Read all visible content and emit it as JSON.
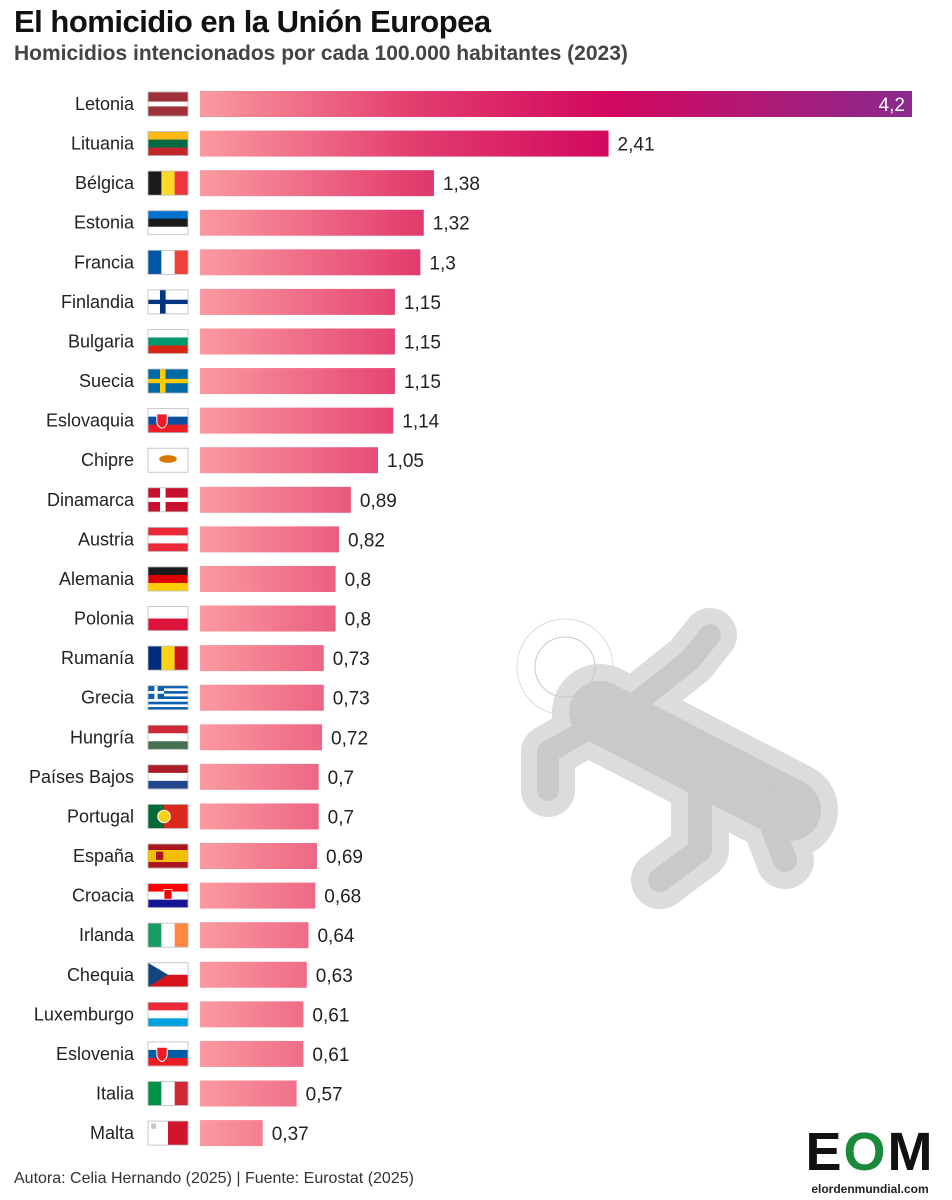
{
  "title": "El homicidio en la Unión Europea",
  "subtitle": "Homicidios intencionados por cada 100.000 habitantes (2023)",
  "footer": "Autora: Celia Hernando (2025) | Fuente: Eurostat (2025)",
  "logo": {
    "letter_e": "E",
    "letter_o": "O",
    "letter_m": "M",
    "url": "elordenmundial.com",
    "brand_color": "#1b8a3a"
  },
  "colors": {
    "bar_start": "#fb9aa0",
    "bar_mid": "#e23d6e",
    "bar_end": "#d2075e",
    "bar_top_end": "#8b2a8e",
    "illustration_fill": "#c9c9c9",
    "illustration_outline": "#dcdcdc"
  },
  "illustration": {
    "icon": "crime-scene-body-outline-icon"
  },
  "chart_data": {
    "type": "bar",
    "orientation": "horizontal",
    "title": "El homicidio en la Unión Europea",
    "subtitle": "Homicidios intencionados por cada 100.000 habitantes (2023)",
    "xlabel": "",
    "ylabel": "",
    "xlim": [
      0,
      4.2
    ],
    "grid": false,
    "categories": [
      "Letonia",
      "Lituania",
      "Bélgica",
      "Estonia",
      "Francia",
      "Finlandia",
      "Bulgaria",
      "Suecia",
      "Eslovaquia",
      "Chipre",
      "Dinamarca",
      "Austria",
      "Alemania",
      "Polonia",
      "Rumanía",
      "Grecia",
      "Hungría",
      "Países Bajos",
      "Portugal",
      "España",
      "Croacia",
      "Irlanda",
      "Chequia",
      "Luxemburgo",
      "Eslovenia",
      "Italia",
      "Malta"
    ],
    "values": [
      4.2,
      2.41,
      1.38,
      1.32,
      1.3,
      1.15,
      1.15,
      1.15,
      1.14,
      1.05,
      0.89,
      0.82,
      0.8,
      0.8,
      0.73,
      0.73,
      0.72,
      0.7,
      0.7,
      0.69,
      0.68,
      0.64,
      0.63,
      0.61,
      0.61,
      0.57,
      0.37
    ],
    "value_labels": [
      "4,2",
      "2,41",
      "1,38",
      "1,32",
      "1,3",
      "1,15",
      "1,15",
      "1,15",
      "1,14",
      "1,05",
      "0,89",
      "0,82",
      "0,8",
      "0,8",
      "0,73",
      "0,73",
      "0,72",
      "0,7",
      "0,7",
      "0,69",
      "0,68",
      "0,64",
      "0,63",
      "0,61",
      "0,61",
      "0,57",
      "0,37"
    ],
    "flags": [
      {
        "icon": "latvia-flag-icon",
        "type": "h",
        "colors": [
          "#9e3039",
          "#ffffff",
          "#9e3039"
        ],
        "weights": [
          2,
          1,
          2
        ]
      },
      {
        "icon": "lithuania-flag-icon",
        "type": "h",
        "colors": [
          "#fdb913",
          "#006a44",
          "#c1272d"
        ]
      },
      {
        "icon": "belgium-flag-icon",
        "type": "v",
        "colors": [
          "#1a1a1a",
          "#fdda24",
          "#ef3340"
        ]
      },
      {
        "icon": "estonia-flag-icon",
        "type": "h",
        "colors": [
          "#0072ce",
          "#1a1a1a",
          "#ffffff"
        ]
      },
      {
        "icon": "france-flag-icon",
        "type": "v",
        "colors": [
          "#0055a4",
          "#ffffff",
          "#ef4135"
        ]
      },
      {
        "icon": "finland-flag-icon",
        "type": "nordic",
        "colors": [
          "#ffffff",
          "#003580"
        ]
      },
      {
        "icon": "bulgaria-flag-icon",
        "type": "h",
        "colors": [
          "#ffffff",
          "#00966e",
          "#d62612"
        ]
      },
      {
        "icon": "sweden-flag-icon",
        "type": "nordic",
        "colors": [
          "#006aa7",
          "#fecc00"
        ]
      },
      {
        "icon": "slovakia-flag-icon",
        "type": "h",
        "colors": [
          "#ffffff",
          "#0b4ea2",
          "#ee1c25"
        ],
        "emblem": "shield"
      },
      {
        "icon": "cyprus-flag-icon",
        "type": "cyprus",
        "colors": [
          "#ffffff",
          "#d57800"
        ]
      },
      {
        "icon": "denmark-flag-icon",
        "type": "nordic",
        "colors": [
          "#c8102e",
          "#ffffff"
        ]
      },
      {
        "icon": "austria-flag-icon",
        "type": "h",
        "colors": [
          "#ed2939",
          "#ffffff",
          "#ed2939"
        ]
      },
      {
        "icon": "germany-flag-icon",
        "type": "h",
        "colors": [
          "#1a1a1a",
          "#dd0000",
          "#ffce00"
        ]
      },
      {
        "icon": "poland-flag-icon",
        "type": "h",
        "colors": [
          "#ffffff",
          "#dc143c"
        ]
      },
      {
        "icon": "romania-flag-icon",
        "type": "v",
        "colors": [
          "#002b7f",
          "#fcd116",
          "#ce1126"
        ]
      },
      {
        "icon": "greece-flag-icon",
        "type": "greece",
        "colors": [
          "#0d5eaf",
          "#ffffff"
        ]
      },
      {
        "icon": "hungary-flag-icon",
        "type": "h",
        "colors": [
          "#ce2939",
          "#ffffff",
          "#477050"
        ]
      },
      {
        "icon": "netherlands-flag-icon",
        "type": "h",
        "colors": [
          "#ae1c28",
          "#ffffff",
          "#21468b"
        ]
      },
      {
        "icon": "portugal-flag-icon",
        "type": "v",
        "colors": [
          "#046a38",
          "#da291c"
        ],
        "weights": [
          2,
          3
        ],
        "emblem": "circle"
      },
      {
        "icon": "spain-flag-icon",
        "type": "h",
        "colors": [
          "#aa151b",
          "#f1bf00",
          "#aa151b"
        ],
        "weights": [
          1,
          2,
          1
        ],
        "emblem": "spain"
      },
      {
        "icon": "croatia-flag-icon",
        "type": "h",
        "colors": [
          "#ff0000",
          "#ffffff",
          "#171796"
        ],
        "emblem": "checker"
      },
      {
        "icon": "ireland-flag-icon",
        "type": "v",
        "colors": [
          "#169b62",
          "#ffffff",
          "#ff883e"
        ]
      },
      {
        "icon": "czechia-flag-icon",
        "type": "czech",
        "colors": [
          "#ffffff",
          "#d7141a",
          "#11457e"
        ]
      },
      {
        "icon": "luxembourg-flag-icon",
        "type": "h",
        "colors": [
          "#ed2939",
          "#ffffff",
          "#00a1de"
        ]
      },
      {
        "icon": "slovenia-flag-icon",
        "type": "h",
        "colors": [
          "#ffffff",
          "#005da4",
          "#ed1c24"
        ],
        "emblem": "shield"
      },
      {
        "icon": "italy-flag-icon",
        "type": "v",
        "colors": [
          "#009246",
          "#ffffff",
          "#ce2b37"
        ]
      },
      {
        "icon": "malta-flag-icon",
        "type": "v",
        "colors": [
          "#ffffff",
          "#cf142b"
        ],
        "emblem": "cross"
      }
    ]
  }
}
